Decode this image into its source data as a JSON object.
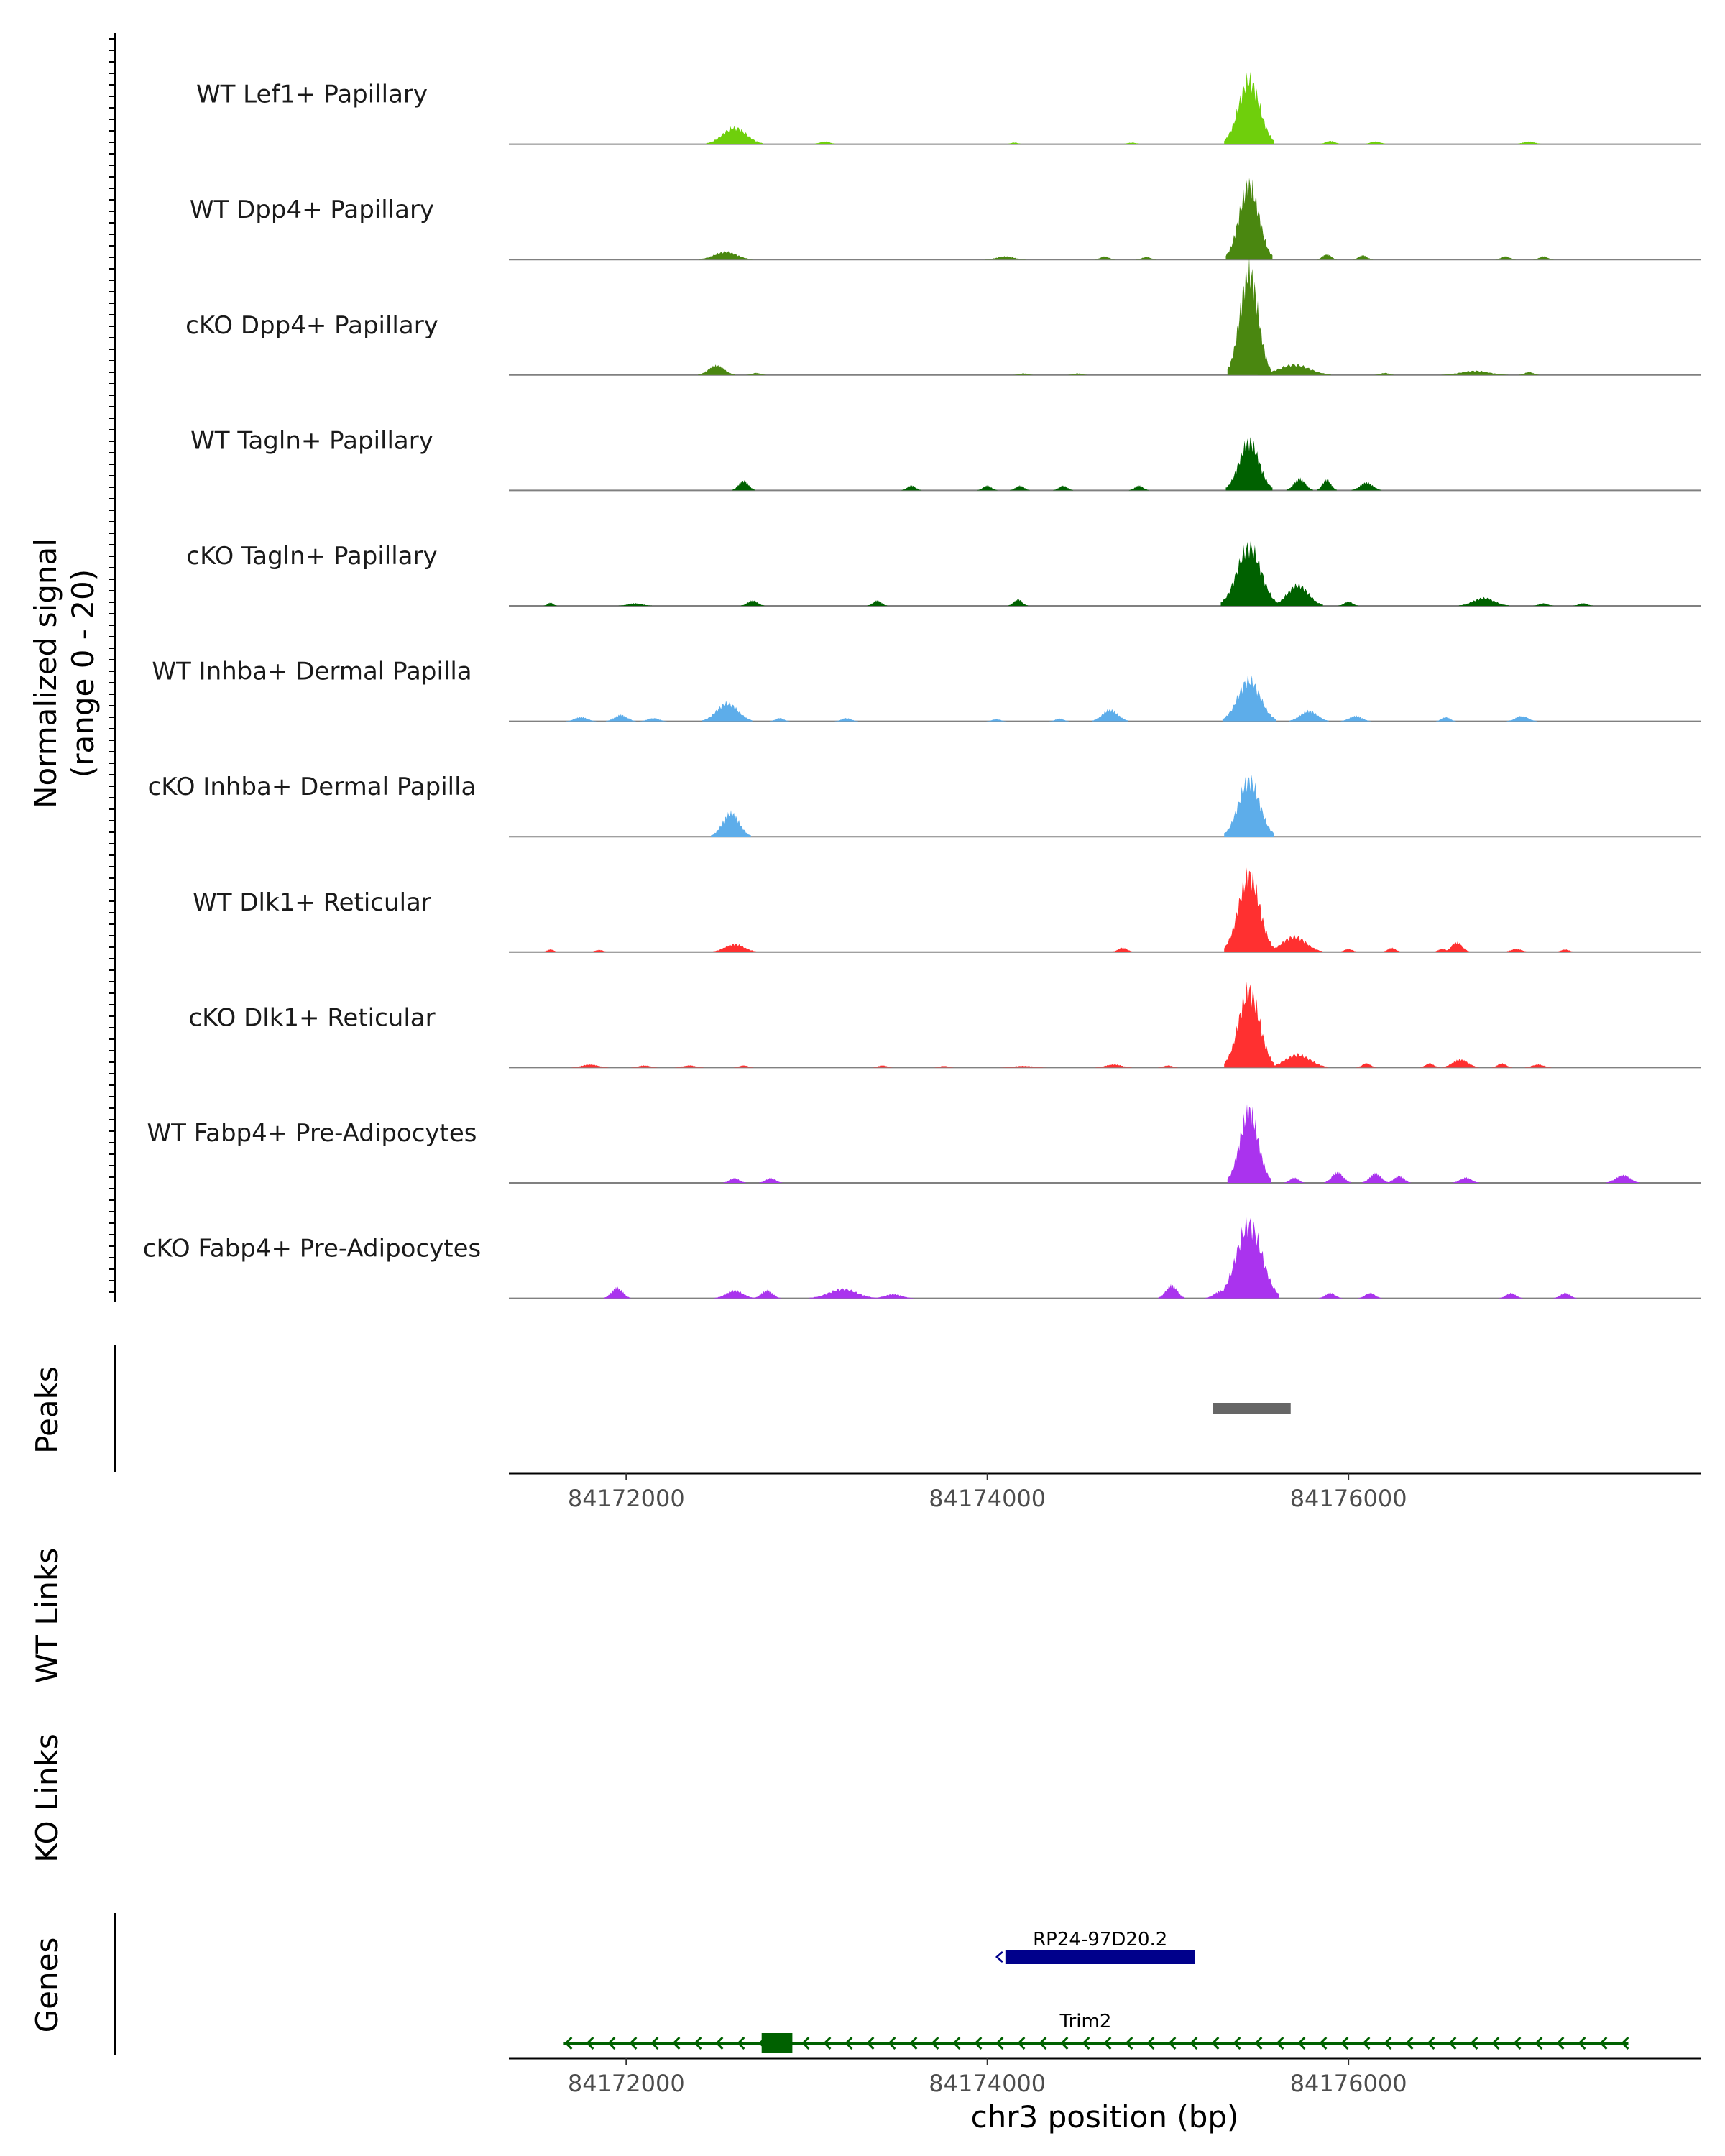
{
  "chart_data": {
    "type": "area",
    "title": "",
    "chrom": "chr3",
    "xlabel": "chr3 position (bp)",
    "ylabel": "Normalized signal",
    "ylabel_range": "(range 0 - 20)",
    "ylim": [
      0,
      20
    ],
    "xlim": [
      84171350,
      84177950
    ],
    "x_ticks": [
      84172000,
      84174000,
      84176000
    ],
    "x_tick_labels": [
      "84172000",
      "84174000",
      "84176000"
    ],
    "tracks": [
      {
        "name": "WT Lef1+ Papillary",
        "color": "#6FCF0C",
        "peaks": [
          [
            84172600,
            3.2,
            170
          ],
          [
            84173100,
            0.5,
            80
          ],
          [
            84174150,
            0.3,
            60
          ],
          [
            84174800,
            0.3,
            70
          ],
          [
            84175450,
            12.5,
            150
          ],
          [
            84175900,
            0.6,
            70
          ],
          [
            84176150,
            0.5,
            80
          ],
          [
            84177000,
            0.5,
            90
          ]
        ]
      },
      {
        "name": "WT Dpp4+ Papillary",
        "color": "#4A8710",
        "peaks": [
          [
            84172550,
            1.5,
            160
          ],
          [
            84174100,
            0.6,
            120
          ],
          [
            84174650,
            0.6,
            60
          ],
          [
            84174880,
            0.5,
            60
          ],
          [
            84175450,
            14.5,
            140
          ],
          [
            84175880,
            1.0,
            60
          ],
          [
            84176080,
            0.8,
            60
          ],
          [
            84176870,
            0.6,
            60
          ],
          [
            84177080,
            0.6,
            60
          ]
        ]
      },
      {
        "name": "cKO Dpp4+ Papillary",
        "color": "#4A8710",
        "peaks": [
          [
            84172500,
            1.8,
            110
          ],
          [
            84172720,
            0.4,
            60
          ],
          [
            84174200,
            0.3,
            60
          ],
          [
            84174500,
            0.3,
            60
          ],
          [
            84175450,
            20,
            130
          ],
          [
            84175700,
            2.0,
            220
          ],
          [
            84176200,
            0.4,
            60
          ],
          [
            84176700,
            0.8,
            200
          ],
          [
            84177000,
            0.6,
            60
          ]
        ]
      },
      {
        "name": "WT Tagln+ Papillary",
        "color": "#006100",
        "peaks": [
          [
            84172650,
            1.8,
            70
          ],
          [
            84173580,
            0.9,
            60
          ],
          [
            84174000,
            0.9,
            60
          ],
          [
            84174180,
            0.9,
            60
          ],
          [
            84174420,
            0.9,
            60
          ],
          [
            84174840,
            0.9,
            60
          ],
          [
            84175450,
            9.5,
            140
          ],
          [
            84175730,
            2.2,
            80
          ],
          [
            84175880,
            2.0,
            60
          ],
          [
            84176100,
            1.5,
            90
          ]
        ]
      },
      {
        "name": "cKO Tagln+ Papillary",
        "color": "#006100",
        "peaks": [
          [
            84171580,
            0.6,
            40
          ],
          [
            84172050,
            0.5,
            100
          ],
          [
            84172700,
            1.0,
            70
          ],
          [
            84173390,
            1.0,
            60
          ],
          [
            84174170,
            1.2,
            60
          ],
          [
            84175450,
            11.5,
            170
          ],
          [
            84175720,
            4.0,
            150
          ],
          [
            84176000,
            0.8,
            60
          ],
          [
            84176750,
            1.5,
            150
          ],
          [
            84177080,
            0.5,
            60
          ],
          [
            84177300,
            0.5,
            60
          ]
        ]
      },
      {
        "name": "WT Inhba+ Dermal Papilla",
        "color": "#5DADEA",
        "peaks": [
          [
            84171750,
            0.8,
            90
          ],
          [
            84171970,
            1.2,
            90
          ],
          [
            84172150,
            0.6,
            80
          ],
          [
            84172560,
            3.5,
            150
          ],
          [
            84172850,
            0.6,
            60
          ],
          [
            84173220,
            0.6,
            70
          ],
          [
            84174050,
            0.4,
            60
          ],
          [
            84174400,
            0.5,
            60
          ],
          [
            84174680,
            2.2,
            110
          ],
          [
            84175450,
            8.0,
            160
          ],
          [
            84175780,
            2.0,
            120
          ],
          [
            84176040,
            1.0,
            90
          ],
          [
            84176540,
            0.8,
            60
          ],
          [
            84176960,
            1.0,
            90
          ]
        ]
      },
      {
        "name": "cKO Inhba+ Dermal Papilla",
        "color": "#5DADEA",
        "peaks": [
          [
            84172580,
            4.5,
            120
          ],
          [
            84175450,
            11.0,
            150
          ]
        ]
      },
      {
        "name": "WT Dlk1+ Reticular",
        "color": "#FF3030",
        "peaks": [
          [
            84171580,
            0.5,
            50
          ],
          [
            84171850,
            0.4,
            60
          ],
          [
            84172600,
            1.5,
            140
          ],
          [
            84174750,
            0.8,
            70
          ],
          [
            84175450,
            15.0,
            150
          ],
          [
            84175700,
            3.0,
            170
          ],
          [
            84176000,
            0.6,
            60
          ],
          [
            84176240,
            0.8,
            60
          ],
          [
            84176520,
            0.6,
            60
          ],
          [
            84176600,
            1.8,
            80
          ],
          [
            84176930,
            0.6,
            80
          ],
          [
            84177200,
            0.5,
            60
          ]
        ]
      },
      {
        "name": "cKO Dlk1+ Reticular",
        "color": "#FF3030",
        "peaks": [
          [
            84171800,
            0.6,
            110
          ],
          [
            84172100,
            0.4,
            80
          ],
          [
            84172350,
            0.4,
            90
          ],
          [
            84172650,
            0.4,
            60
          ],
          [
            84173420,
            0.4,
            60
          ],
          [
            84173760,
            0.3,
            60
          ],
          [
            84174200,
            0.3,
            140
          ],
          [
            84174700,
            0.6,
            110
          ],
          [
            84175000,
            0.4,
            60
          ],
          [
            84175450,
            15.0,
            150
          ],
          [
            84175720,
            2.5,
            180
          ],
          [
            84176100,
            0.8,
            60
          ],
          [
            84176450,
            0.8,
            60
          ],
          [
            84176620,
            1.5,
            110
          ],
          [
            84176850,
            0.8,
            60
          ],
          [
            84177050,
            0.6,
            80
          ]
        ]
      },
      {
        "name": "WT Fabp4+ Pre-Adipocytes",
        "color": "#AA33EE",
        "peaks": [
          [
            84172600,
            0.9,
            70
          ],
          [
            84172800,
            0.9,
            70
          ],
          [
            84175450,
            14.0,
            130
          ],
          [
            84175700,
            1.0,
            60
          ],
          [
            84175940,
            2.0,
            80
          ],
          [
            84176150,
            1.8,
            80
          ],
          [
            84176280,
            1.3,
            70
          ],
          [
            84176650,
            1.0,
            80
          ],
          [
            84177520,
            1.5,
            100
          ]
        ]
      },
      {
        "name": "cKO Fabp4+ Pre-Adipocytes",
        "color": "#AA33EE",
        "peaks": [
          [
            84171950,
            2.0,
            80
          ],
          [
            84172600,
            1.5,
            120
          ],
          [
            84172780,
            1.5,
            80
          ],
          [
            84173200,
            1.8,
            200
          ],
          [
            84173480,
            0.8,
            120
          ],
          [
            84175020,
            2.5,
            80
          ],
          [
            84175300,
            1.5,
            100
          ],
          [
            84175450,
            14.5,
            180
          ],
          [
            84175900,
            1.0,
            70
          ],
          [
            84176120,
            1.0,
            70
          ],
          [
            84176900,
            1.0,
            70
          ],
          [
            84177200,
            1.0,
            70
          ]
        ]
      }
    ],
    "peaks_track": {
      "label": "Peaks",
      "regions": [
        [
          84175250,
          84175680
        ]
      ]
    },
    "links_tracks": [
      {
        "label": "WT Links"
      },
      {
        "label": "KO Links"
      }
    ],
    "genes_track": {
      "label": "Genes",
      "genes": [
        {
          "name": "RP24-97D20.2",
          "start": 84174100,
          "end": 84175150,
          "strand": "-",
          "color": "#00008B",
          "row": 0
        },
        {
          "name": "Trim2",
          "start": 84171650,
          "end": 84177550,
          "strand": "-",
          "color": "#006100",
          "row": 1,
          "exons": [
            [
              84172750,
              84172920
            ]
          ]
        }
      ]
    }
  }
}
